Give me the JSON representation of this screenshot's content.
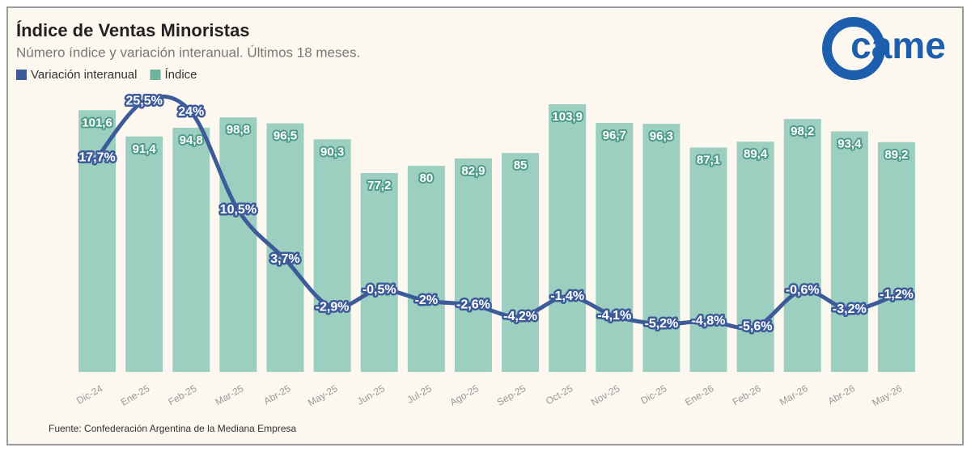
{
  "chart_data": {
    "type": "bar-line",
    "title": "Índice de Ventas Minoristas",
    "subtitle": "Número índice y variación interanual. Últimos 18 meses.",
    "logo": "came",
    "source": "Fuente: Confederación Argentina de la Mediana Empresa",
    "categories": [
      "Dic-24",
      "Ene-25",
      "Feb-25",
      "Mar-25",
      "Abr-25",
      "May-25",
      "Jun-25",
      "Jul-25",
      "Ago-25",
      "Sep-25",
      "Oct-25",
      "Nov-25",
      "Dic-25",
      "Ene-26",
      "Feb-26",
      "Mar-26",
      "Abr-26",
      "May-26"
    ],
    "legend": "top-left",
    "ylim": [
      0,
      113
    ],
    "y2lim": [
      -11.8,
      28.3
    ],
    "series": [
      {
        "name": "Variación interanual",
        "type": "line",
        "axis": "y2",
        "color": "#3d5a99",
        "values": [
          17.7,
          25.5,
          24,
          10.5,
          3.7,
          -2.9,
          -0.5,
          -2,
          -2.6,
          -4.2,
          -1.4,
          -4.1,
          -5.2,
          -4.8,
          -5.6,
          -0.6,
          -3.2,
          -1.2
        ],
        "value_labels": [
          "17,7%",
          "25,5%",
          "24%",
          "10,5%",
          "3,7%",
          "-2,9%",
          "-0,5%",
          "-2%",
          "-2,6%",
          "-4,2%",
          "-1,4%",
          "-4,1%",
          "-5,2%",
          "-4,8%",
          "-5,6%",
          "-0,6%",
          "-3,2%",
          "-1,2%"
        ]
      },
      {
        "name": "Índice",
        "type": "bar",
        "color": "#9dcfc1",
        "values": [
          101.6,
          91.4,
          94.8,
          98.8,
          96.5,
          90.3,
          77.2,
          80,
          82.9,
          85,
          103.9,
          96.7,
          96.3,
          87.1,
          89.4,
          98.2,
          93.4,
          89.2
        ],
        "value_labels": [
          "101,6",
          "91,4",
          "94,8",
          "98,8",
          "96,5",
          "90,3",
          "77,2",
          "80",
          "82,9",
          "85",
          "103,9",
          "96,7",
          "96,3",
          "87,1",
          "89,4",
          "98,2",
          "93,4",
          "89,2"
        ]
      }
    ]
  }
}
